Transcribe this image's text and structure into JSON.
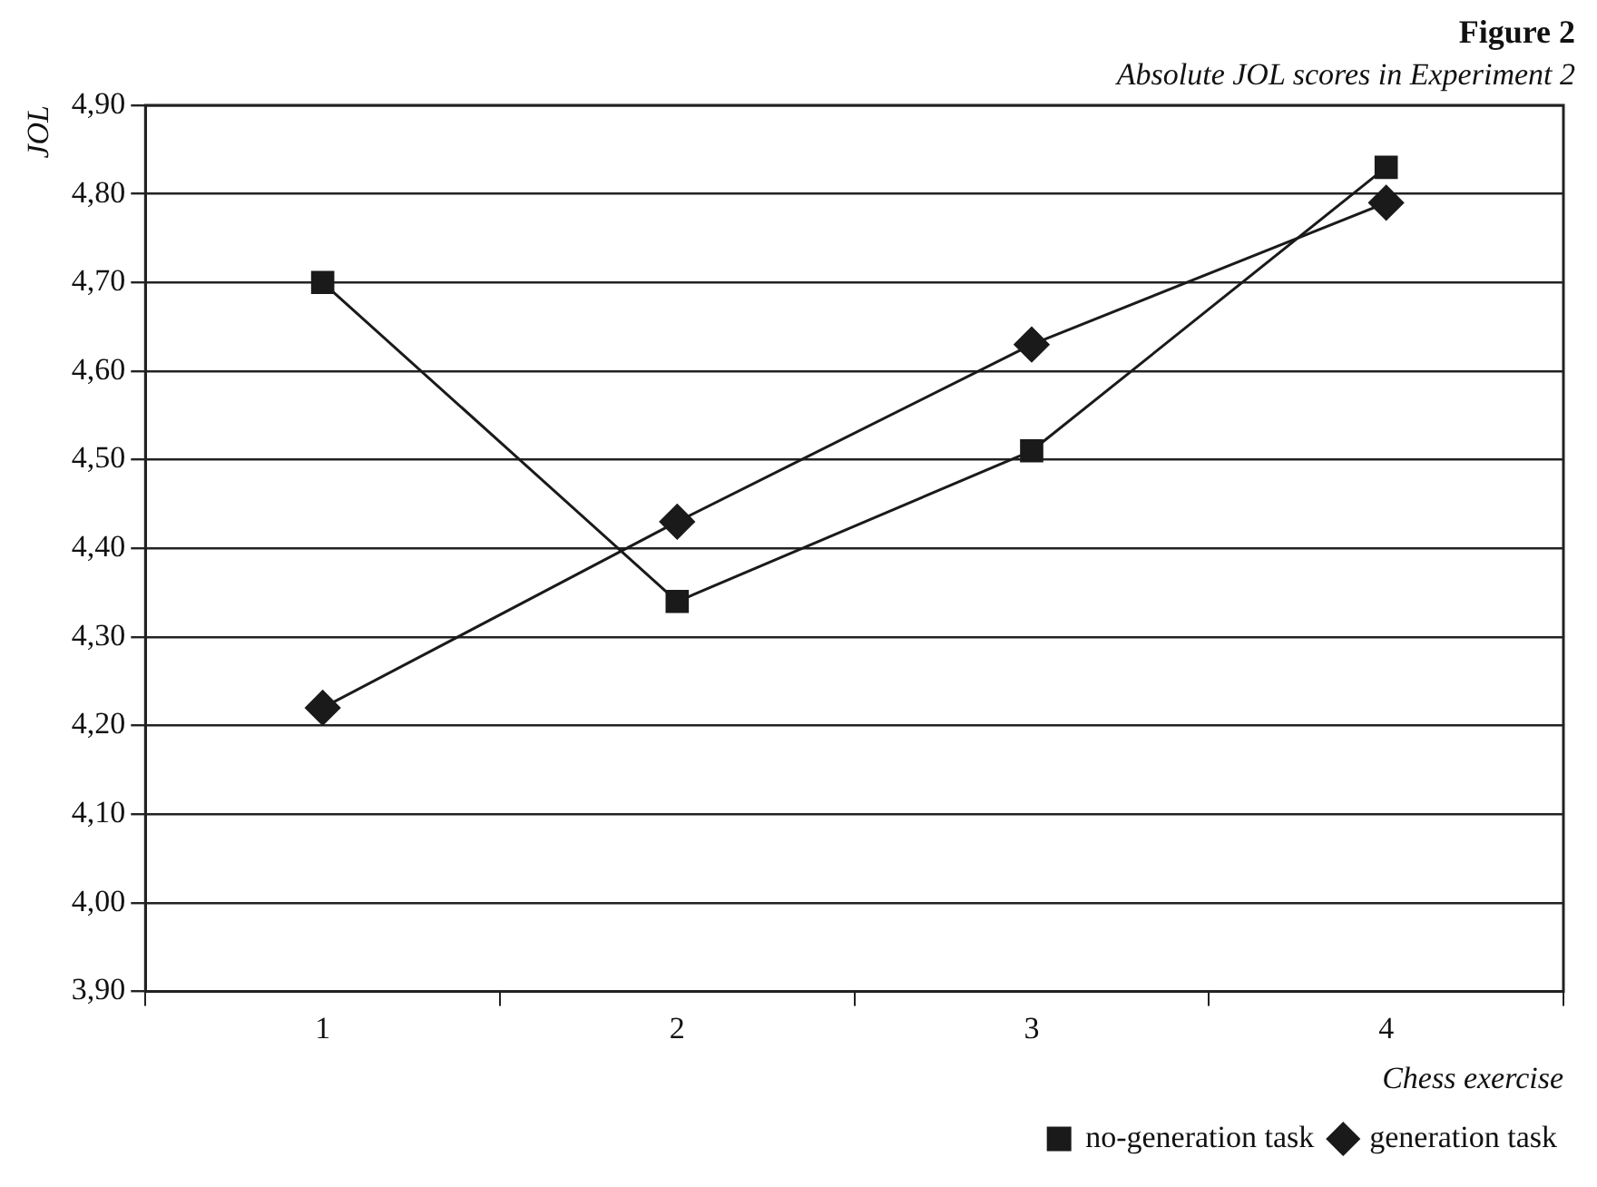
{
  "chart_data": {
    "type": "line",
    "title": "Figure 2",
    "subtitle": "Absolute JOL scores in Experiment 2",
    "xlabel": "Chess exercise",
    "ylabel": "JOL",
    "categories": [
      "1",
      "2",
      "3",
      "4"
    ],
    "series": [
      {
        "name": "no-generation task",
        "color": "#1a1a1a",
        "values": [
          4.7,
          4.34,
          4.51,
          4.83
        ],
        "marker": "square"
      },
      {
        "name": "generation task",
        "color": "#1a1a1a",
        "values": [
          4.22,
          4.43,
          4.63,
          4.79
        ],
        "marker": "diamond"
      }
    ],
    "ylim": [
      3.9,
      4.9
    ],
    "yticks": [
      {
        "value": 3.9,
        "label": "3,90"
      },
      {
        "value": 4.0,
        "label": "4,00"
      },
      {
        "value": 4.1,
        "label": "4,10"
      },
      {
        "value": 4.2,
        "label": "4,20"
      },
      {
        "value": 4.3,
        "label": "4,30"
      },
      {
        "value": 4.4,
        "label": "4,40"
      },
      {
        "value": 4.5,
        "label": "4,50"
      },
      {
        "value": 4.6,
        "label": "4,60"
      },
      {
        "value": 4.7,
        "label": "4,70"
      },
      {
        "value": 4.8,
        "label": "4,80"
      },
      {
        "value": 4.9,
        "label": "4,90"
      }
    ],
    "grid": "y",
    "legend": "bottom right",
    "line_style": "solid"
  }
}
